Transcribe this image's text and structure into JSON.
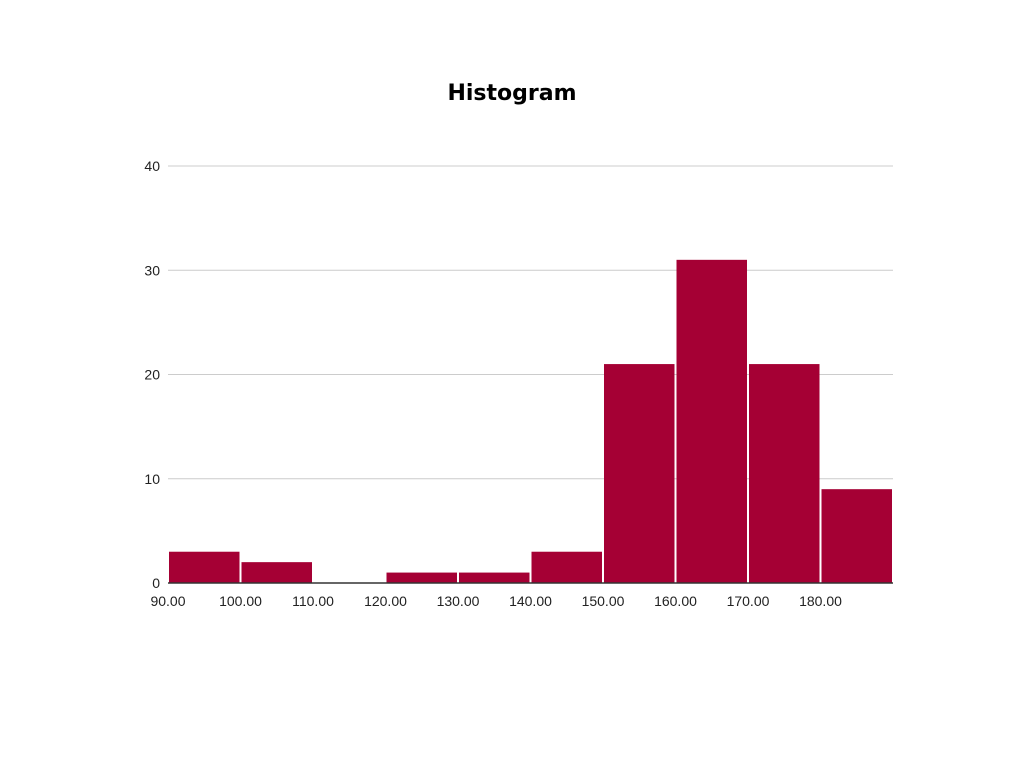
{
  "chart_data": {
    "type": "bar",
    "title": "Histogram",
    "xlabel": "",
    "ylabel": "",
    "bin_edges": [
      90,
      100,
      110,
      120,
      130,
      140,
      150,
      160,
      170,
      180,
      190
    ],
    "counts": [
      3,
      2,
      0,
      1,
      1,
      3,
      21,
      31,
      21,
      9
    ],
    "x_tick_labels": [
      "90.00",
      "100.00",
      "110.00",
      "120.00",
      "130.00",
      "140.00",
      "150.00",
      "160.00",
      "170.00",
      "180.00"
    ],
    "y_ticks": [
      0,
      10,
      20,
      30,
      40
    ],
    "ylim": [
      0,
      40
    ],
    "grid": true,
    "legend": "none",
    "bar_color": "#a50034"
  }
}
